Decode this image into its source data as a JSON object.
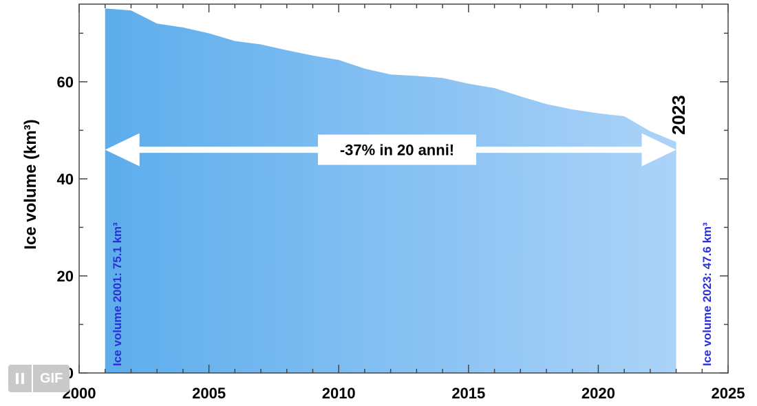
{
  "chart_data": {
    "type": "area",
    "title": "",
    "xlabel": "",
    "ylabel": "Ice volume (km³)",
    "xlim": [
      2000,
      2025
    ],
    "ylim": [
      0,
      76
    ],
    "x_ticks": [
      2000,
      2005,
      2010,
      2015,
      2020,
      2025
    ],
    "y_ticks": [
      0,
      20,
      40,
      60
    ],
    "grid": false,
    "x": [
      2001,
      2002,
      2003,
      2004,
      2005,
      2006,
      2007,
      2008,
      2009,
      2010,
      2011,
      2012,
      2013,
      2014,
      2015,
      2016,
      2017,
      2018,
      2019,
      2020,
      2021,
      2022,
      2023
    ],
    "values": [
      75.1,
      74.7,
      72.0,
      71.2,
      70.0,
      68.4,
      67.7,
      66.5,
      65.4,
      64.5,
      62.7,
      61.5,
      61.2,
      60.8,
      59.6,
      58.7,
      57.0,
      55.4,
      54.3,
      53.5,
      52.9,
      49.8,
      47.6
    ],
    "colors": {
      "fill_start": "#5dadec",
      "fill_end": "#acd3f8",
      "annotation_blue": "#2b2fd6",
      "arrow": "#ffffff"
    },
    "annotations": {
      "start_label": "Ice volume 2001: 75.1 km³",
      "end_label": "Ice volume 2023: 47.6 km³",
      "end_year": "2023",
      "change_label": "-37% in 20 anni!",
      "arrow_y": 46,
      "arrow_x_from": 2001,
      "arrow_x_to": 2023
    }
  },
  "gif_badge": {
    "pause_icon": "pause-icon",
    "label": "GIF"
  }
}
